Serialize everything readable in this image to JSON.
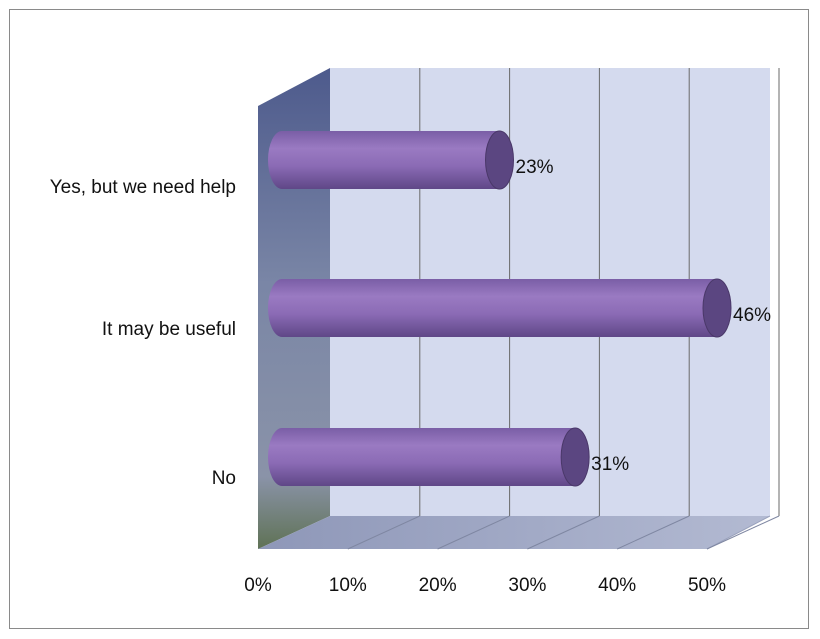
{
  "chart_data": {
    "type": "bar",
    "orientation": "horizontal",
    "style": "3d-cylinder",
    "categories": [
      "Yes, but we need help",
      "It may be useful",
      "No"
    ],
    "values": [
      23,
      46,
      31
    ],
    "value_labels": [
      "23%",
      "46%",
      "31%"
    ],
    "xlim": [
      0,
      50
    ],
    "xticks": [
      0,
      10,
      20,
      30,
      40,
      50
    ],
    "xtick_labels": [
      "0%",
      "10%",
      "20%",
      "30%",
      "40%",
      "50%"
    ],
    "title": "",
    "xlabel": "",
    "ylabel": "",
    "grid": true,
    "legend": "none",
    "colors": {
      "bar": "#8b6bb3",
      "bar_dark": "#5a4580",
      "wall": "#d3d9ee",
      "side_wall_top": "#4e5a8a",
      "side_wall_bottom": "#6b7a5a",
      "floor": "#a6aec8",
      "grid": "#6e6e6e"
    }
  }
}
